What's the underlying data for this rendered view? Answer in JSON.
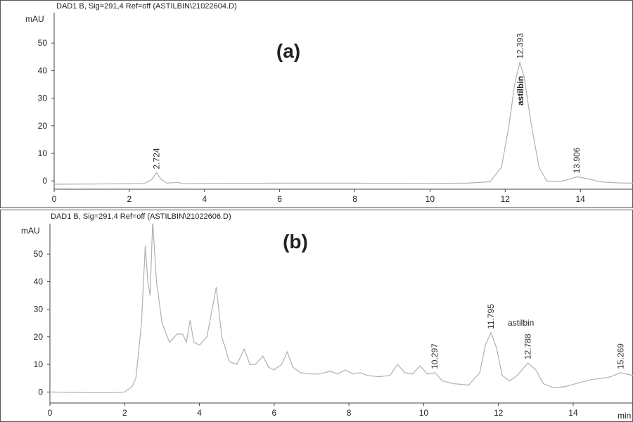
{
  "chart_data": [
    {
      "type": "line",
      "header": "DAD1 B, Sig=291,4 Ref=off (ASTILBIN\\21022604.D)",
      "panel_label": "(a)",
      "y_label": "mAU",
      "compound_label": "astilbin",
      "xlim": [
        0,
        15.4
      ],
      "ylim": [
        -3,
        60
      ],
      "xticks": [
        0,
        2,
        4,
        6,
        8,
        10,
        12,
        14
      ],
      "yticks": [
        0,
        10,
        20,
        30,
        40,
        50
      ],
      "series": [
        {
          "color": "#b0b0b0",
          "x": [
            0,
            1,
            2,
            2.4,
            2.6,
            2.72,
            2.85,
            3.0,
            3.3,
            3.4,
            4,
            6,
            8,
            10,
            11,
            11.6,
            11.9,
            12.1,
            12.25,
            12.39,
            12.5,
            12.7,
            12.9,
            13.1,
            13.4,
            13.6,
            13.906,
            14.2,
            14.5,
            15,
            15.4
          ],
          "values": [
            -1.2,
            -1.1,
            -1.0,
            -0.9,
            0.5,
            3,
            0.5,
            -0.8,
            -0.5,
            -1.0,
            -0.9,
            -0.8,
            -0.8,
            -0.9,
            -0.8,
            -0.3,
            5,
            20,
            35,
            43,
            38,
            20,
            5,
            0,
            -0.3,
            0.2,
            1.5,
            0.8,
            -0.3,
            -0.7,
            -0.8
          ]
        }
      ],
      "peak_labels": [
        "2.724",
        "12.393",
        "13.906"
      ]
    },
    {
      "type": "line",
      "header": "DAD1 B, Sig=291,4 Ref=off (ASTILBIN\\21022606.D)",
      "panel_label": "(b)",
      "y_label": "mAU",
      "x_label": "min",
      "compound_label": "astilbin",
      "xlim": [
        0,
        15.6
      ],
      "ylim": [
        -4,
        60
      ],
      "xticks": [
        0,
        2,
        4,
        6,
        8,
        10,
        12,
        14
      ],
      "yticks": [
        0,
        10,
        20,
        30,
        40,
        50
      ],
      "series": [
        {
          "color": "#b0b0b0",
          "x": [
            0,
            1.6,
            2.0,
            2.2,
            2.3,
            2.45,
            2.55,
            2.62,
            2.68,
            2.75,
            2.85,
            3.0,
            3.2,
            3.4,
            3.55,
            3.65,
            3.75,
            3.85,
            4.0,
            4.2,
            4.45,
            4.6,
            4.8,
            5.0,
            5.2,
            5.35,
            5.5,
            5.7,
            5.85,
            6.0,
            6.2,
            6.35,
            6.5,
            6.7,
            7.0,
            7.2,
            7.5,
            7.7,
            7.9,
            8.1,
            8.3,
            8.5,
            8.8,
            9.1,
            9.3,
            9.5,
            9.7,
            9.9,
            10.1,
            10.3,
            10.5,
            10.8,
            11.2,
            11.5,
            11.65,
            11.8,
            11.95,
            12.1,
            12.3,
            12.5,
            12.79,
            13.0,
            13.2,
            13.5,
            13.8,
            14.2,
            14.5,
            14.8,
            15.0,
            15.27,
            15.6
          ],
          "values": [
            0,
            -0.3,
            0,
            2,
            5,
            25,
            53,
            40,
            35,
            62,
            40,
            25,
            18,
            21,
            21,
            18,
            26,
            18,
            17,
            20,
            38,
            20,
            11,
            10,
            15.5,
            10,
            10,
            13,
            9,
            8,
            10,
            14.5,
            9,
            7,
            6.5,
            6.5,
            7.5,
            6.5,
            8,
            6.5,
            7,
            6,
            5.5,
            6,
            10,
            7,
            6.5,
            9.5,
            6.5,
            7,
            4,
            3,
            2.5,
            7,
            17,
            21.5,
            16,
            6,
            4,
            6,
            10.5,
            8,
            3,
            1.5,
            2,
            3.5,
            4.5,
            5,
            5.5,
            7,
            6
          ]
        }
      ],
      "peak_labels": [
        "10.297",
        "11.795",
        "12.788",
        "15.269"
      ]
    }
  ]
}
